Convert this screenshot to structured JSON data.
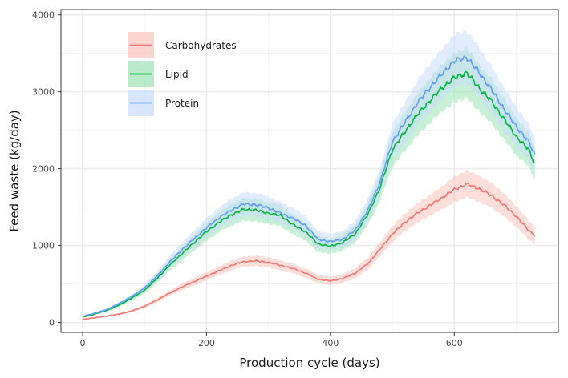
{
  "chart_data": {
    "type": "line",
    "xlabel": "Production cycle (days)",
    "ylabel": "Feed waste (kg/day)",
    "xlim": [
      -35,
      768
    ],
    "ylim": [
      -130,
      4070
    ],
    "xticks": [
      0,
      200,
      400,
      600
    ],
    "yticks": [
      0,
      1000,
      2000,
      3000,
      4000
    ],
    "grid": true,
    "legend_position": "top-left inside",
    "series": [
      {
        "name": "Carbohydrates",
        "color": "#f8766d",
        "band_color": "#fbc3bd",
        "x": [
          0,
          20,
          40,
          60,
          80,
          100,
          120,
          140,
          160,
          180,
          200,
          220,
          240,
          260,
          280,
          300,
          320,
          340,
          360,
          380,
          400,
          420,
          440,
          460,
          480,
          500,
          520,
          540,
          560,
          580,
          600,
          620,
          640,
          660,
          680,
          700,
          720,
          730
        ],
        "values": [
          40,
          60,
          85,
          110,
          150,
          210,
          290,
          380,
          460,
          530,
          600,
          670,
          740,
          790,
          800,
          780,
          740,
          700,
          640,
          560,
          540,
          570,
          640,
          760,
          950,
          1150,
          1300,
          1420,
          1520,
          1620,
          1730,
          1800,
          1740,
          1650,
          1530,
          1380,
          1200,
          1130
        ],
        "lower": [
          35,
          53,
          75,
          98,
          134,
          188,
          262,
          345,
          418,
          482,
          548,
          613,
          677,
          722,
          731,
          713,
          675,
          637,
          580,
          505,
          485,
          511,
          573,
          684,
          858,
          1045,
          1185,
          1295,
          1385,
          1470,
          1565,
          1625,
          1570,
          1488,
          1380,
          1245,
          1080,
          1015
        ],
        "upper": [
          45,
          67,
          95,
          122,
          166,
          232,
          318,
          415,
          502,
          578,
          652,
          727,
          803,
          858,
          869,
          847,
          805,
          763,
          700,
          615,
          595,
          629,
          707,
          836,
          1042,
          1255,
          1415,
          1545,
          1655,
          1770,
          1895,
          1975,
          1910,
          1812,
          1680,
          1515,
          1320,
          1245
        ]
      },
      {
        "name": "Lipid",
        "color": "#00ba38",
        "band_color": "#9be3b4",
        "x": [
          0,
          20,
          40,
          60,
          80,
          100,
          120,
          140,
          160,
          180,
          200,
          220,
          240,
          260,
          280,
          300,
          320,
          340,
          360,
          380,
          400,
          420,
          440,
          460,
          480,
          500,
          520,
          540,
          560,
          580,
          600,
          620,
          640,
          660,
          680,
          700,
          720,
          730
        ],
        "values": [
          70,
          110,
          160,
          230,
          320,
          420,
          570,
          740,
          890,
          1040,
          1180,
          1300,
          1400,
          1470,
          1460,
          1420,
          1390,
          1270,
          1180,
          1020,
          990,
          1040,
          1150,
          1400,
          1750,
          2250,
          2480,
          2700,
          2880,
          3050,
          3180,
          3250,
          3050,
          2880,
          2650,
          2420,
          2250,
          2060
        ],
        "lower": [
          63,
          99,
          144,
          207,
          288,
          378,
          513,
          666,
          801,
          936,
          1062,
          1170,
          1260,
          1323,
          1314,
          1278,
          1251,
          1143,
          1062,
          918,
          891,
          936,
          1035,
          1260,
          1575,
          2025,
          2232,
          2430,
          2592,
          2745,
          2862,
          2925,
          2745,
          2592,
          2385,
          2178,
          2025,
          1854
        ],
        "upper": [
          77,
          121,
          176,
          253,
          352,
          462,
          627,
          814,
          979,
          1144,
          1298,
          1430,
          1540,
          1617,
          1606,
          1562,
          1529,
          1397,
          1298,
          1122,
          1089,
          1144,
          1265,
          1540,
          1925,
          2475,
          2728,
          2970,
          3168,
          3355,
          3498,
          3575,
          3355,
          3168,
          2915,
          2662,
          2475,
          2266
        ]
      },
      {
        "name": "Protein",
        "color": "#619cff",
        "band_color": "#c9dcff",
        "x": [
          0,
          20,
          40,
          60,
          80,
          100,
          120,
          140,
          160,
          180,
          200,
          220,
          240,
          260,
          280,
          300,
          320,
          340,
          360,
          380,
          400,
          420,
          440,
          460,
          480,
          500,
          520,
          540,
          560,
          580,
          600,
          620,
          640,
          660,
          680,
          700,
          720,
          730
        ],
        "values": [
          80,
          120,
          170,
          250,
          340,
          450,
          600,
          780,
          940,
          1090,
          1230,
          1360,
          1460,
          1540,
          1530,
          1490,
          1420,
          1350,
          1260,
          1080,
          1050,
          1080,
          1200,
          1450,
          1820,
          2350,
          2600,
          2850,
          3050,
          3230,
          3400,
          3450,
          3250,
          3030,
          2780,
          2550,
          2350,
          2180
        ],
        "lower": [
          72,
          108,
          153,
          225,
          306,
          405,
          540,
          702,
          846,
          981,
          1107,
          1224,
          1314,
          1386,
          1377,
          1341,
          1278,
          1215,
          1134,
          972,
          945,
          972,
          1080,
          1305,
          1638,
          2115,
          2340,
          2565,
          2745,
          2907,
          3060,
          3105,
          2925,
          2727,
          2502,
          2295,
          2115,
          1962
        ],
        "upper": [
          88,
          132,
          187,
          275,
          374,
          495,
          660,
          858,
          1034,
          1199,
          1353,
          1496,
          1606,
          1694,
          1683,
          1639,
          1562,
          1485,
          1386,
          1188,
          1155,
          1188,
          1320,
          1595,
          2002,
          2585,
          2860,
          3135,
          3355,
          3553,
          3740,
          3795,
          3575,
          3333,
          3058,
          2805,
          2585,
          2398
        ]
      }
    ]
  }
}
